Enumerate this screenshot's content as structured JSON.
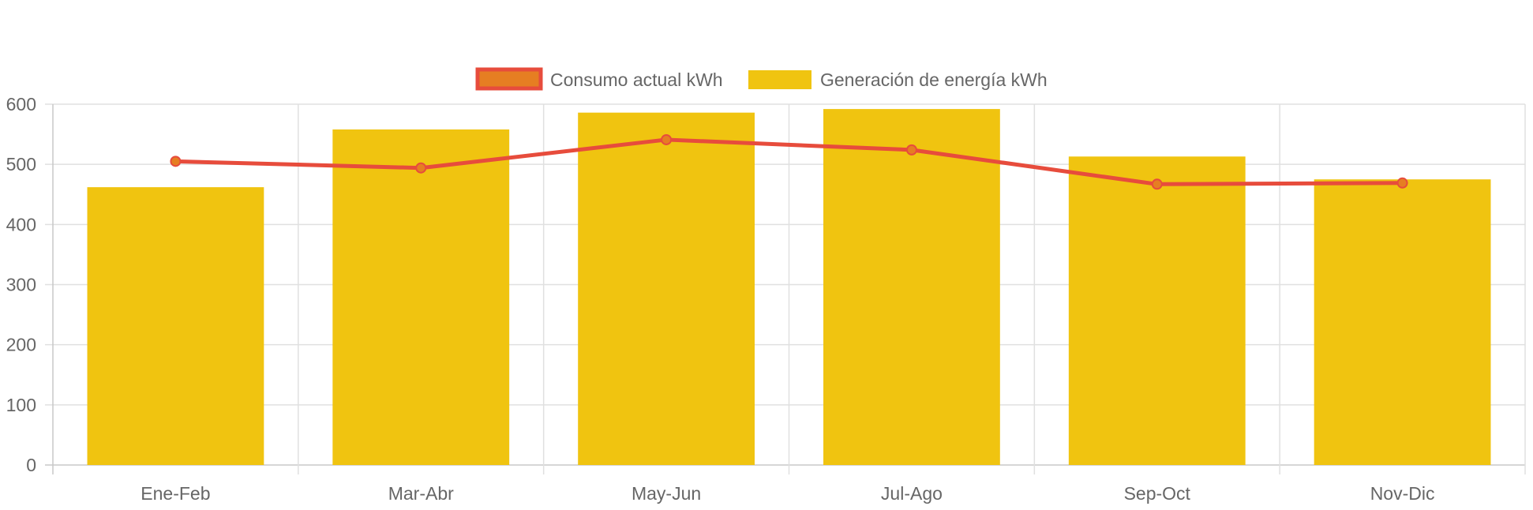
{
  "chart_data": {
    "type": "bar",
    "categories": [
      "Ene-Feb",
      "Mar-Abr",
      "May-Jun",
      "Jul-Ago",
      "Sep-Oct",
      "Nov-Dic"
    ],
    "series": [
      {
        "name": "Generación de energía kWh",
        "type": "bar",
        "values": [
          462,
          558,
          586,
          592,
          513,
          475
        ]
      },
      {
        "name": "Consumo actual kWh",
        "type": "line",
        "values": [
          505,
          494,
          541,
          524,
          467,
          469
        ]
      }
    ],
    "yticks": [
      "0",
      "100",
      "200",
      "300",
      "400",
      "500",
      "600"
    ],
    "ylim": [
      0,
      600
    ],
    "grid": true,
    "legend_position": "top-center",
    "title": "",
    "xlabel": "",
    "ylabel": ""
  },
  "colors": {
    "bar": "#F0C410",
    "line": "#E74C3C",
    "point_fill": "#E67E22",
    "grid": "#e0e0e0",
    "text": "#666666"
  }
}
